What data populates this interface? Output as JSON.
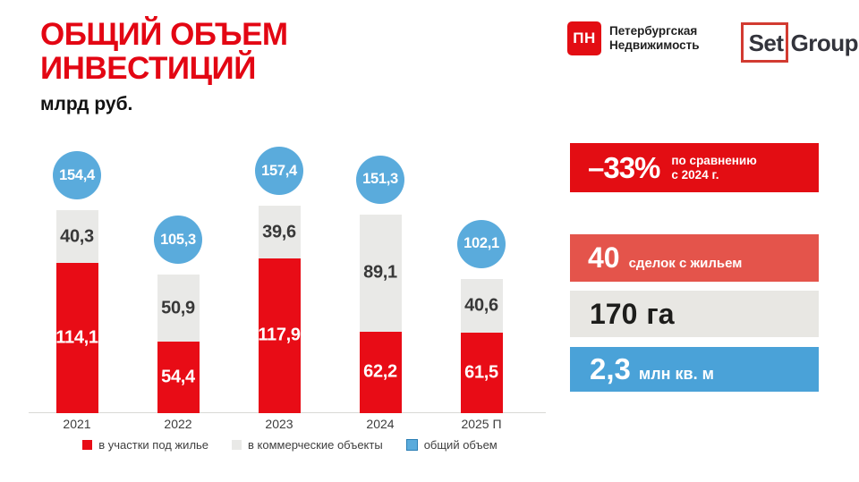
{
  "header": {
    "title_line1": "ОБЩИЙ ОБЪЕМ",
    "title_line2": "ИНВЕСТИЦИЙ",
    "subtitle": "млрд руб.",
    "brand_red": "#e30613"
  },
  "logos": {
    "pn": {
      "abbr": "ПН",
      "line1": "Петербургская",
      "line2": "Недвижимость"
    },
    "setl": {
      "part1": "Set",
      "part2": "Group"
    }
  },
  "chart_data": {
    "type": "bar",
    "subtype": "stacked-bars-with-total-bubbles",
    "title": "ОБЩИЙ ОБЪЕМ ИНВЕСТИЦИЙ",
    "unit": "млрд руб.",
    "categories": [
      "2021",
      "2022",
      "2023",
      "2024",
      "2025 П"
    ],
    "series": [
      {
        "name": "в участки под жилье",
        "color": "#e80c16",
        "label_color": "#ffffff",
        "values": [
          114.1,
          54.4,
          117.9,
          62.2,
          61.5
        ],
        "labels": [
          "114,1",
          "54,4",
          "117,9",
          "62,2",
          "61,5"
        ]
      },
      {
        "name": "в коммерческие объекты",
        "color": "#e9e9e7",
        "label_color": "#383838",
        "values": [
          40.3,
          50.9,
          39.6,
          89.1,
          40.6
        ],
        "labels": [
          "40,3",
          "50,9",
          "39,6",
          "89,1",
          "40,6"
        ]
      }
    ],
    "totals": {
      "name": "общий объем",
      "color": "#5aabdc",
      "swatch_border": "#2b7fb5",
      "values": [
        154.4,
        105.3,
        157.4,
        151.3,
        102.1
      ],
      "labels": [
        "154,4",
        "105,3",
        "157,4",
        "151,3",
        "102,1"
      ]
    },
    "legend_position": "bottom",
    "grid": false,
    "ylim": [
      0,
      212
    ]
  },
  "stats": {
    "change": {
      "value": "–33%",
      "note_line1": "по сравнению",
      "note_line2": "с 2024 г.",
      "bg": "#e30d13"
    },
    "deals": {
      "value": "40",
      "label": "сделок с жильем",
      "bg": "#e4544b"
    },
    "land": {
      "value": "170",
      "label": "га",
      "bg": "#e8e7e3"
    },
    "area": {
      "value": "2,3",
      "label": "млн кв. м",
      "bg": "#4aa2d8"
    }
  }
}
